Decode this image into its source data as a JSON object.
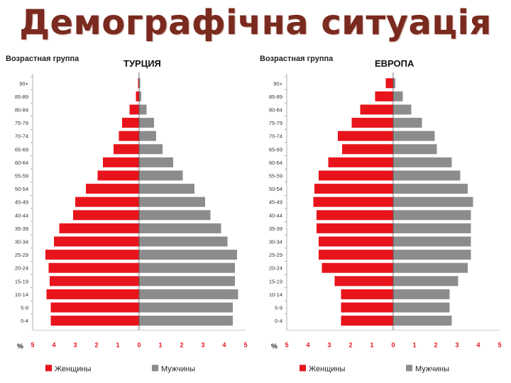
{
  "slide": {
    "title": "Демографічна ситуація"
  },
  "chart_data": [
    {
      "type": "bar",
      "orientation": "horizontal",
      "layout": "population-pyramid",
      "title": "ТУРЦИЯ",
      "ylabel": "Возрастная группа",
      "xlabel": "%",
      "categories": [
        "90+",
        "85-89",
        "80-84",
        "75-79",
        "70-74",
        "65-69",
        "60-64",
        "55-59",
        "50-54",
        "45-49",
        "40-44",
        "35-39",
        "30-34",
        "25-29",
        "20-24",
        "15-19",
        "10-14",
        "5-9",
        "0-4"
      ],
      "xticks": [
        "5",
        "4",
        "3",
        "2",
        "1",
        "0",
        "1",
        "2",
        "3",
        "4",
        "5"
      ],
      "xlim": [
        -5,
        5
      ],
      "series": [
        {
          "name": "Женщины",
          "color": "#e8141b",
          "side": "left",
          "values": [
            0.05,
            0.15,
            0.45,
            0.8,
            0.95,
            1.2,
            1.7,
            1.95,
            2.5,
            3.0,
            3.1,
            3.75,
            4.0,
            4.4,
            4.25,
            4.2,
            4.35,
            4.15,
            4.15
          ]
        },
        {
          "name": "Мужчины",
          "color": "#8c8c8c",
          "side": "right",
          "values": [
            0.05,
            0.1,
            0.35,
            0.7,
            0.8,
            1.1,
            1.6,
            2.05,
            2.6,
            3.1,
            3.35,
            3.85,
            4.15,
            4.6,
            4.5,
            4.5,
            4.65,
            4.4,
            4.4
          ]
        }
      ],
      "legend": {
        "position": "bottom",
        "items": [
          "Женщины",
          "Мужчины"
        ]
      },
      "grid": false
    },
    {
      "type": "bar",
      "orientation": "horizontal",
      "layout": "population-pyramid",
      "title": "ЕВРОПА",
      "ylabel": "Возрастная группа",
      "xlabel": "%",
      "categories": [
        "90+",
        "85-89",
        "80-84",
        "75-79",
        "70-74",
        "65-69",
        "60-64",
        "55-59",
        "50-54",
        "45-49",
        "40-44",
        "35-39",
        "30-34",
        "25-29",
        "20-24",
        "15-19",
        "10-14",
        "5-9",
        "0-4"
      ],
      "xticks": [
        "5",
        "4",
        "3",
        "2",
        "1",
        "0",
        "1",
        "2",
        "3",
        "4",
        "5"
      ],
      "xlim": [
        -5,
        5
      ],
      "series": [
        {
          "name": "Женщины",
          "color": "#e8141b",
          "side": "left",
          "values": [
            0.35,
            0.85,
            1.55,
            1.95,
            2.6,
            2.4,
            3.05,
            3.5,
            3.7,
            3.75,
            3.6,
            3.6,
            3.5,
            3.5,
            3.35,
            2.75,
            2.45,
            2.45,
            2.45
          ]
        },
        {
          "name": "Мужчины",
          "color": "#8c8c8c",
          "side": "right",
          "values": [
            0.1,
            0.45,
            0.85,
            1.35,
            1.95,
            2.05,
            2.75,
            3.15,
            3.5,
            3.75,
            3.65,
            3.65,
            3.65,
            3.65,
            3.5,
            3.05,
            2.65,
            2.65,
            2.75
          ]
        }
      ],
      "legend": {
        "position": "bottom",
        "items": [
          "Женщины",
          "Мужчины"
        ]
      },
      "grid": false
    }
  ]
}
